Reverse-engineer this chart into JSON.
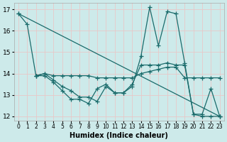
{
  "title": "",
  "xlabel": "Humidex (Indice chaleur)",
  "bg_color": "#cdeaea",
  "grid_color": "#e8c8c8",
  "line_color": "#1a6b6b",
  "xlim": [
    -0.5,
    23.5
  ],
  "ylim": [
    11.8,
    17.3
  ],
  "yticks": [
    12,
    13,
    14,
    15,
    16,
    17
  ],
  "xticks": [
    0,
    1,
    2,
    3,
    4,
    5,
    6,
    7,
    8,
    9,
    10,
    11,
    12,
    13,
    14,
    15,
    16,
    17,
    18,
    19,
    20,
    21,
    22,
    23
  ],
  "lines": [
    {
      "x": [
        0,
        1,
        2,
        3,
        4,
        5,
        6,
        7,
        8,
        9,
        10,
        11,
        12,
        13,
        14,
        15,
        16,
        17,
        18,
        19,
        20,
        21,
        22,
        23
      ],
      "y": [
        16.8,
        16.3,
        13.9,
        13.9,
        13.6,
        13.2,
        12.8,
        12.8,
        12.6,
        13.3,
        13.5,
        13.1,
        13.1,
        13.4,
        14.8,
        17.1,
        15.3,
        16.9,
        16.8,
        14.5,
        12.1,
        12.1,
        13.3,
        12.0
      ]
    },
    {
      "x": [
        2,
        3,
        4,
        5,
        6,
        7,
        8,
        9,
        10,
        11,
        12,
        13,
        14,
        15,
        16,
        17,
        18,
        19,
        20,
        21,
        22,
        23
      ],
      "y": [
        13.9,
        14.0,
        13.9,
        13.9,
        13.9,
        13.9,
        13.9,
        13.8,
        13.8,
        13.8,
        13.8,
        13.8,
        14.0,
        14.1,
        14.2,
        14.3,
        14.3,
        13.8,
        13.8,
        13.8,
        13.8,
        13.8
      ]
    },
    {
      "x": [
        2,
        3,
        4,
        5,
        6,
        7,
        8,
        9,
        10,
        11,
        12,
        13,
        14,
        15,
        16,
        17,
        18,
        19,
        20,
        21,
        22,
        23
      ],
      "y": [
        13.9,
        14.0,
        13.7,
        13.4,
        13.2,
        12.9,
        12.9,
        12.7,
        13.4,
        13.1,
        13.1,
        13.5,
        14.4,
        14.4,
        14.4,
        14.5,
        14.4,
        14.4,
        12.1,
        12.0,
        12.0,
        12.0
      ]
    },
    {
      "x": [
        0,
        23
      ],
      "y": [
        16.8,
        12.0
      ]
    }
  ],
  "marker": "+",
  "markersize": 4,
  "linewidth": 0.9
}
